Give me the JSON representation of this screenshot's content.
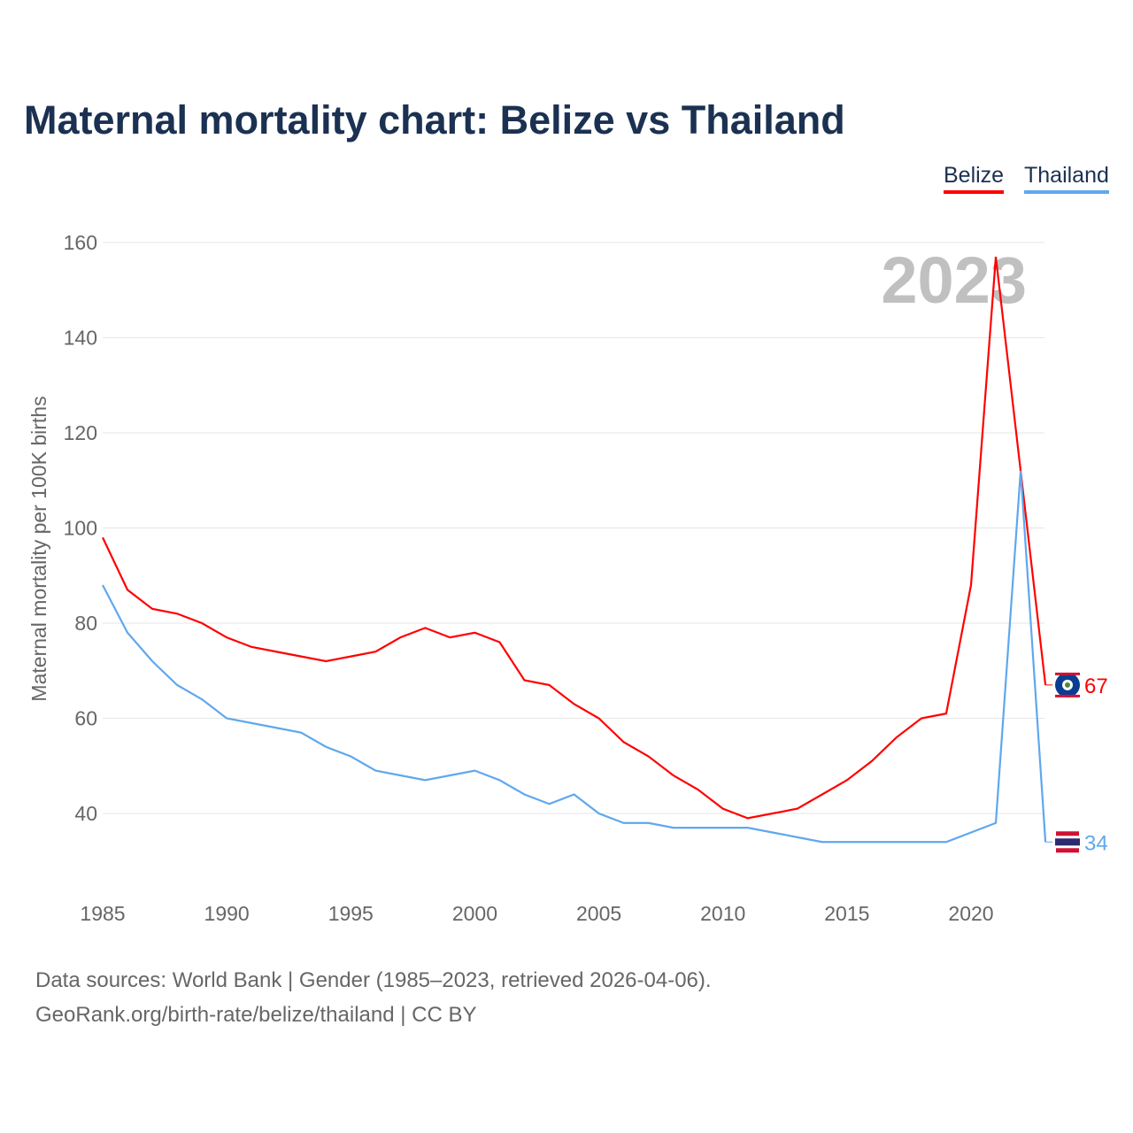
{
  "title": "Maternal mortality chart: Belize vs Thailand",
  "legend": [
    "Belize",
    "Thailand"
  ],
  "source_line1": "Data sources: World Bank | Gender (1985–2023, retrieved 2026-04-06).",
  "source_line2": "GeoRank.org/birth-rate/belize/thailand | CC BY",
  "chart_data": {
    "type": "line",
    "title": "Maternal mortality chart: Belize vs Thailand",
    "ylabel": "Maternal mortality per 100K births",
    "xlabel": "",
    "year_watermark": "2023",
    "xlim": [
      1985,
      2023
    ],
    "ylim": [
      27,
      165
    ],
    "xticks": [
      1985,
      1990,
      1995,
      2000,
      2005,
      2010,
      2015,
      2020
    ],
    "yticks": [
      40,
      60,
      80,
      100,
      120,
      140,
      160
    ],
    "grid": true,
    "legend_position": "top-right",
    "x": [
      1985,
      1986,
      1987,
      1988,
      1989,
      1990,
      1991,
      1992,
      1993,
      1994,
      1995,
      1996,
      1997,
      1998,
      1999,
      2000,
      2001,
      2002,
      2003,
      2004,
      2005,
      2006,
      2007,
      2008,
      2009,
      2010,
      2011,
      2012,
      2013,
      2014,
      2015,
      2016,
      2017,
      2018,
      2019,
      2020,
      2021,
      2022,
      2023
    ],
    "series": [
      {
        "name": "Belize",
        "color": "#ff0000",
        "end_label": "67",
        "values": [
          98,
          87,
          83,
          82,
          80,
          77,
          75,
          74,
          73,
          72,
          73,
          74,
          77,
          79,
          77,
          78,
          76,
          68,
          67,
          63,
          60,
          55,
          52,
          48,
          45,
          41,
          39,
          40,
          41,
          44,
          47,
          51,
          56,
          60,
          61,
          88,
          157,
          112,
          67
        ]
      },
      {
        "name": "Thailand",
        "color": "#5ea8ee",
        "end_label": "34",
        "values": [
          88,
          78,
          72,
          67,
          64,
          60,
          59,
          58,
          57,
          54,
          52,
          49,
          48,
          47,
          48,
          49,
          47,
          44,
          42,
          44,
          40,
          38,
          38,
          37,
          37,
          37,
          37,
          36,
          35,
          34,
          34,
          34,
          34,
          34,
          34,
          36,
          38,
          112,
          34
        ]
      }
    ]
  }
}
